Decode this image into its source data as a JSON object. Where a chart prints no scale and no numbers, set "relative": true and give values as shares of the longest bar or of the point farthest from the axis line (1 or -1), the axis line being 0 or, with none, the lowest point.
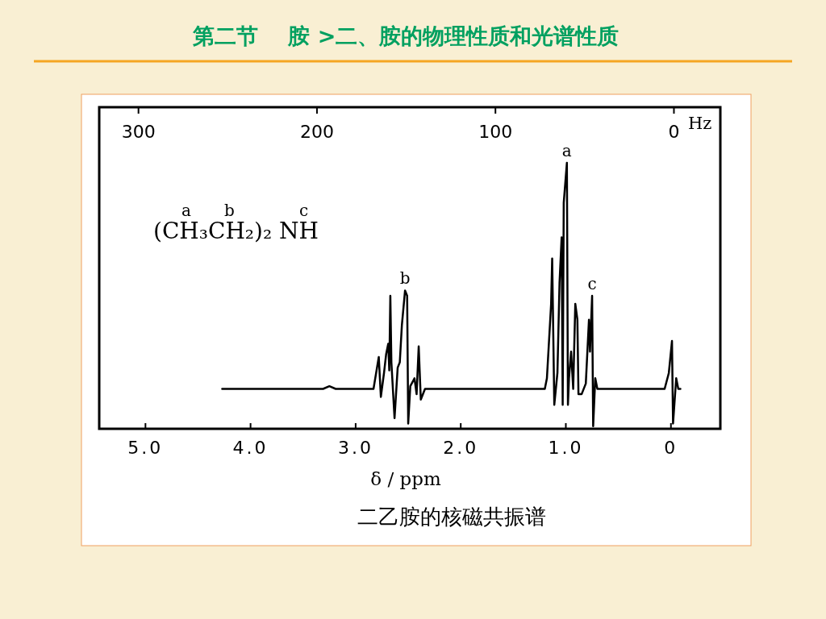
{
  "chart_data": {
    "type": "line",
    "title": "第二节    胺 >二、胺的物理性质和光谱性质",
    "xlabel": "δ / ppm",
    "x2label": "Hz",
    "relative": true,
    "line_style": "solid",
    "xlim": [
      5.44,
      -0.47
    ],
    "xticks": [
      {
        "value": 5,
        "label": "5.0"
      },
      {
        "value": 4,
        "label": "4.0"
      },
      {
        "value": 3,
        "label": "3.0"
      },
      {
        "value": 2,
        "label": "2.0"
      },
      {
        "value": 1,
        "label": "1.0"
      },
      0
    ],
    "x2lim": [
      322,
      -26
    ],
    "x2ticks": [
      300,
      200,
      100,
      0
    ],
    "series": [
      {
        "color": "#000000",
        "x": [
          4.27,
          3.31,
          3.25,
          3.19,
          2.83,
          2.78,
          2.76,
          2.73,
          2.71,
          2.69,
          2.68,
          2.67,
          2.66,
          2.63,
          2.6,
          2.58,
          2.56,
          2.53,
          2.51,
          2.5,
          2.48,
          2.44,
          2.42,
          2.4,
          2.38,
          2.34,
          1.2,
          1.18,
          1.14,
          1.13,
          1.11,
          1.08,
          1.06,
          1.04,
          1.03,
          1.02,
          0.99,
          0.98,
          0.97,
          0.95,
          0.93,
          0.91,
          0.89,
          0.88,
          0.85,
          0.81,
          0.78,
          0.77,
          0.75,
          0.74,
          0.72,
          0.7,
          0.06,
          0.02,
          -0.01,
          -0.02,
          -0.05,
          -0.07,
          -0.09
        ],
        "values": [
          0.15,
          0.15,
          0.16,
          0.15,
          0.15,
          0.27,
          0.12,
          0.21,
          0.28,
          0.32,
          0.22,
          0.5,
          0.25,
          0.04,
          0.23,
          0.25,
          0.39,
          0.52,
          0.5,
          0.02,
          0.16,
          0.19,
          0.13,
          0.31,
          0.11,
          0.15,
          0.15,
          0.19,
          0.47,
          0.64,
          0.09,
          0.21,
          0.55,
          0.72,
          0.09,
          0.85,
          1.0,
          0.09,
          0.19,
          0.29,
          0.15,
          0.47,
          0.41,
          0.13,
          0.13,
          0.17,
          0.41,
          0.29,
          0.5,
          0.01,
          0.19,
          0.15,
          0.15,
          0.21,
          0.33,
          0.02,
          0.19,
          0.15,
          0.15
        ]
      }
    ],
    "annotations": [
      "(CH₃CH₂)₂ NH",
      "a",
      "b",
      "c",
      {
        "text": "a",
        "x": 0.99,
        "y": 1.0
      },
      {
        "text": "b",
        "x": 2.53,
        "y": 0.52
      },
      {
        "text": "c",
        "x": 0.75,
        "y": 0.5
      },
      "二乙胺的核磁共振谱"
    ]
  }
}
